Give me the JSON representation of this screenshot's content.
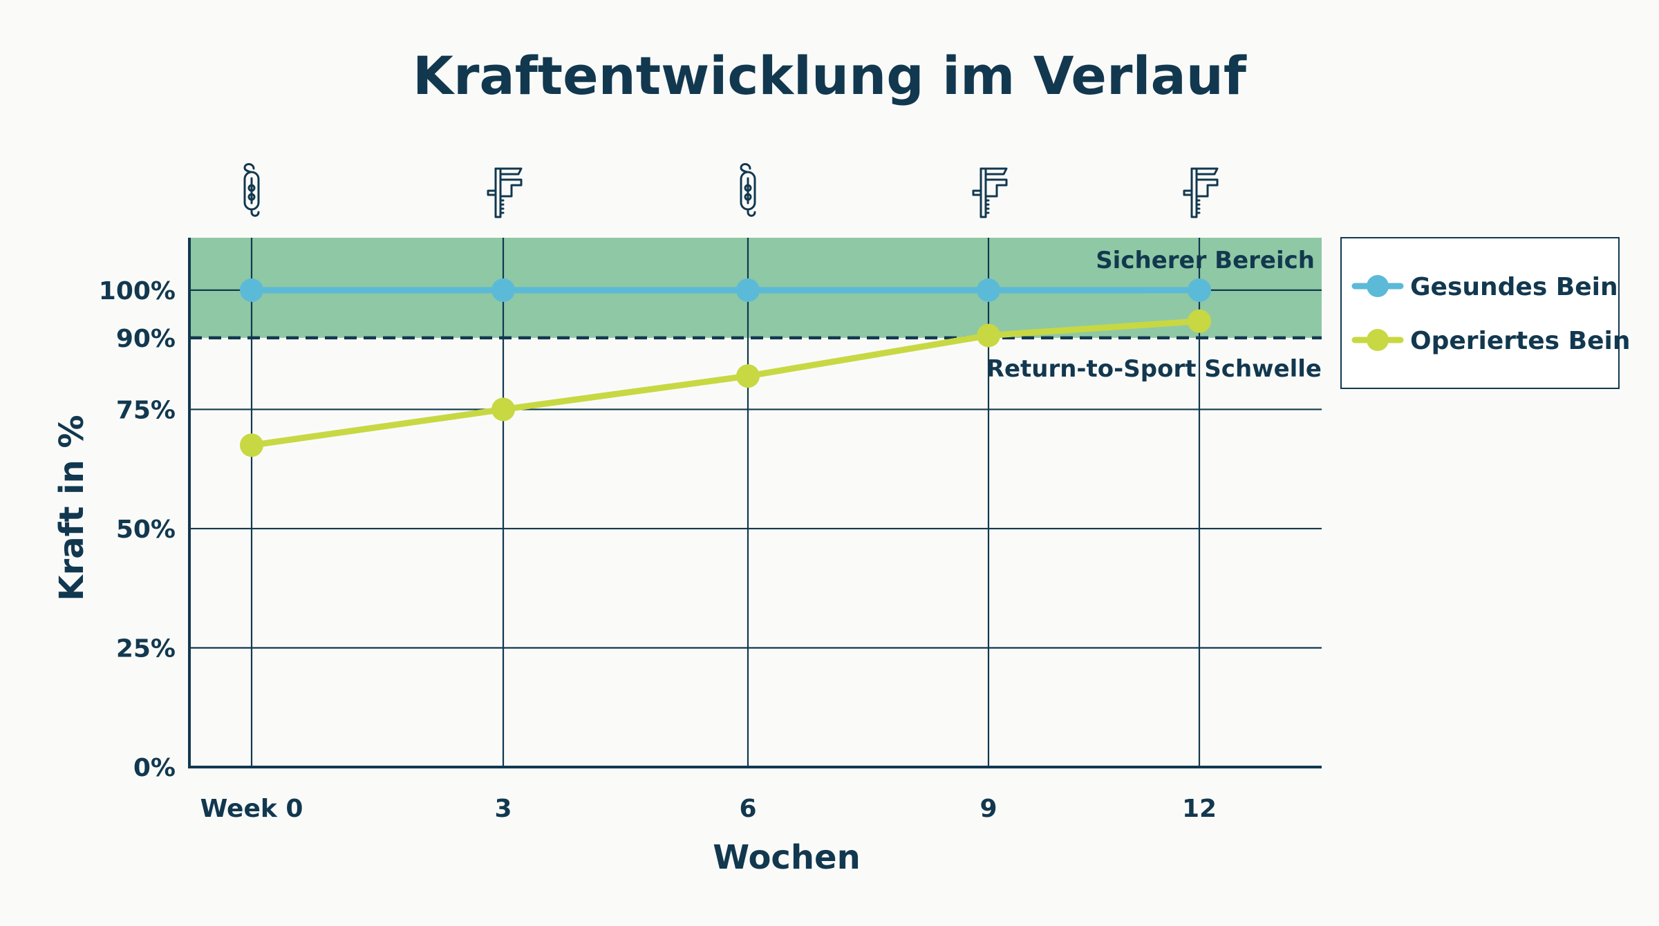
{
  "colors": {
    "navy": "#12384f",
    "safe_zone": "#8fc8a4",
    "healthy_leg": "#5bbad8",
    "operated_leg": "#c8d843",
    "background": "#fafbf9"
  },
  "chart_data": {
    "type": "line",
    "title": "Kraftentwicklung im Verlauf",
    "xlabel": "Wochen",
    "ylabel": "Kraft in %",
    "x": [
      0,
      3,
      6,
      9,
      12
    ],
    "x_tick_labels": [
      "Week 0",
      "3",
      "6",
      "9",
      "12"
    ],
    "y_tick_labels": [
      "0%",
      "25%",
      "50%",
      "75%",
      "90%",
      "100%"
    ],
    "y_ticks": [
      0,
      25,
      50,
      75,
      90,
      100
    ],
    "ylim": [
      0,
      111
    ],
    "grid": true,
    "legend_position": "right",
    "series": [
      {
        "name": "Gesundes Bein",
        "values": [
          100,
          100,
          100,
          100,
          100
        ],
        "color": "#5bbad8"
      },
      {
        "name": "Operiertes Bein",
        "values": [
          67.5,
          75,
          82,
          90.5,
          93.5
        ],
        "color": "#c8d843"
      }
    ],
    "safe_zone": {
      "label": "Sicherer Bereich",
      "from": 90,
      "to": 111
    },
    "threshold": {
      "label": "Return-to-Sport Schwelle",
      "value": 90
    },
    "top_icons": [
      "hanging-scale-icon",
      "caliper-icon",
      "hanging-scale-icon",
      "caliper-icon",
      "caliper-icon"
    ]
  }
}
